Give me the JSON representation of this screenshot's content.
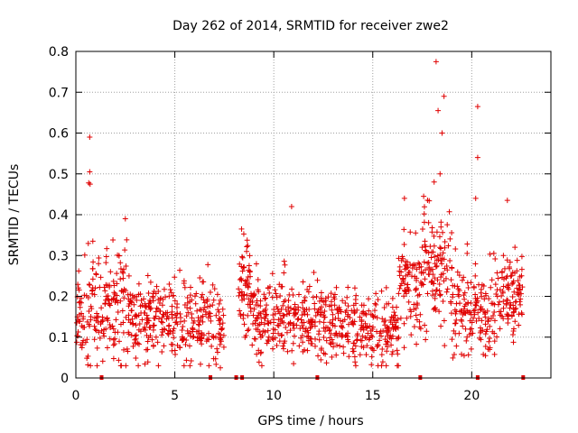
{
  "chart_data": {
    "type": "scatter",
    "title": "Day 262 of 2014, SRMTID for receiver zwe2",
    "xlabel": "GPS time / hours",
    "ylabel": "SRMTID / TECUs",
    "xlim": [
      0,
      24
    ],
    "ylim": [
      0,
      0.8
    ],
    "x_ticks": [
      "0",
      "5",
      "10",
      "15",
      "20"
    ],
    "y_ticks": [
      "0",
      "0.1",
      "0.2",
      "0.3",
      "0.4",
      "0.5",
      "0.6",
      "0.7",
      "0.8"
    ],
    "grid": true,
    "marker": "+",
    "color": "#e00000",
    "outliers": [
      {
        "x": 0.7,
        "y": 0.59
      },
      {
        "x": 0.7,
        "y": 0.505
      },
      {
        "x": 0.65,
        "y": 0.478
      },
      {
        "x": 0.72,
        "y": 0.475
      },
      {
        "x": 18.2,
        "y": 0.775
      },
      {
        "x": 18.6,
        "y": 0.69
      },
      {
        "x": 18.3,
        "y": 0.655
      },
      {
        "x": 20.3,
        "y": 0.665
      },
      {
        "x": 18.5,
        "y": 0.6
      },
      {
        "x": 20.3,
        "y": 0.54
      },
      {
        "x": 18.4,
        "y": 0.5
      },
      {
        "x": 18.1,
        "y": 0.48
      },
      {
        "x": 2.5,
        "y": 0.39
      },
      {
        "x": 10.9,
        "y": 0.42
      },
      {
        "x": 21.8,
        "y": 0.435
      },
      {
        "x": 16.6,
        "y": 0.44
      },
      {
        "x": 20.2,
        "y": 0.44
      },
      {
        "x": 7.3,
        "y": 0.025
      },
      {
        "x": 11.0,
        "y": 0.035
      },
      {
        "x": 21.6,
        "y": 0.3
      }
    ],
    "baseline_markers": [
      1.3,
      6.8,
      8.1,
      8.4,
      12.2,
      17.4,
      20.3,
      22.6
    ],
    "segments": [
      {
        "x_start": 0.0,
        "x_end": 2.0,
        "mean": 0.17,
        "spread": 0.09,
        "count": 140
      },
      {
        "x_start": 2.0,
        "x_end": 2.7,
        "mean": 0.19,
        "spread": 0.1,
        "count": 50
      },
      {
        "x_start": 2.7,
        "x_end": 5.0,
        "mean": 0.15,
        "spread": 0.065,
        "count": 160
      },
      {
        "x_start": 5.0,
        "x_end": 7.5,
        "mean": 0.14,
        "spread": 0.07,
        "count": 160
      },
      {
        "x_start": 8.2,
        "x_end": 9.0,
        "mean": 0.22,
        "spread": 0.08,
        "count": 70
      },
      {
        "x_start": 9.0,
        "x_end": 11.5,
        "mean": 0.15,
        "spread": 0.065,
        "count": 170
      },
      {
        "x_start": 11.5,
        "x_end": 13.5,
        "mean": 0.135,
        "spread": 0.06,
        "count": 140
      },
      {
        "x_start": 13.5,
        "x_end": 16.3,
        "mean": 0.12,
        "spread": 0.055,
        "count": 180
      },
      {
        "x_start": 16.3,
        "x_end": 17.5,
        "mean": 0.22,
        "spread": 0.08,
        "count": 90
      },
      {
        "x_start": 17.5,
        "x_end": 19.0,
        "mean": 0.28,
        "spread": 0.1,
        "count": 110
      },
      {
        "x_start": 19.0,
        "x_end": 20.0,
        "mean": 0.18,
        "spread": 0.08,
        "count": 70
      },
      {
        "x_start": 20.0,
        "x_end": 21.2,
        "mean": 0.16,
        "spread": 0.07,
        "count": 80
      },
      {
        "x_start": 21.2,
        "x_end": 22.6,
        "mean": 0.2,
        "spread": 0.07,
        "count": 100
      }
    ]
  }
}
